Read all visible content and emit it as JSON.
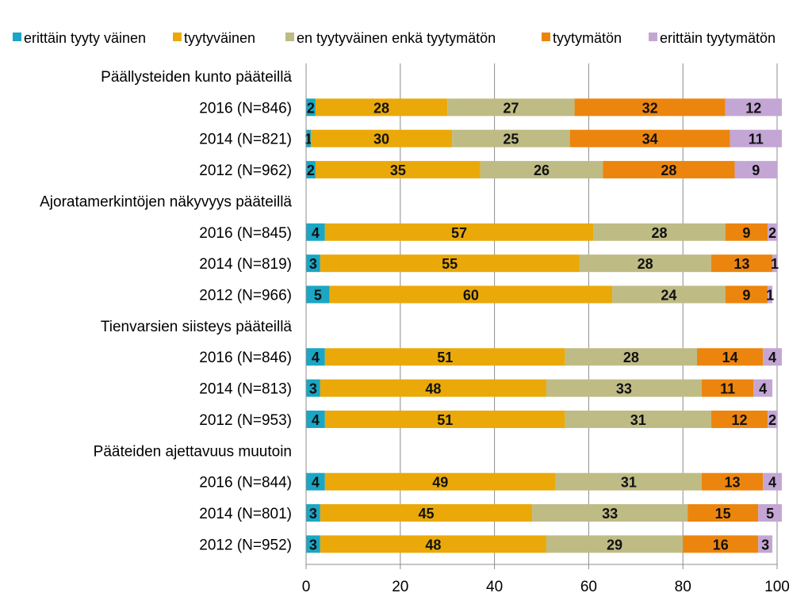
{
  "chart_data": {
    "type": "bar",
    "orientation": "horizontal",
    "stacked": true,
    "xlim": [
      0,
      100
    ],
    "xticks": [
      0,
      20,
      40,
      60,
      80,
      100
    ],
    "grid": "vertical",
    "legend_position": "top",
    "legend": [
      {
        "name": "erittäin tyyty väinen",
        "color": "#1aa6c4"
      },
      {
        "name": "tyytyväinen",
        "color": "#eaa909"
      },
      {
        "name": "en tyytyväinen enkä tyytymätön",
        "color": "#bebb85"
      },
      {
        "name": "tyytymätön",
        "color": "#ec850e"
      },
      {
        "name": "erittäin tyytymätön",
        "color": "#c3a6d4"
      }
    ],
    "rows": [
      {
        "label": "Päällysteiden kunto pääteillä",
        "header": true
      },
      {
        "label": "2016 (N=846)",
        "values": [
          2,
          28,
          27,
          32,
          12
        ]
      },
      {
        "label": "2014 (N=821)",
        "values": [
          1,
          30,
          25,
          34,
          11
        ]
      },
      {
        "label": "2012 (N=962)",
        "values": [
          2,
          35,
          26,
          28,
          9
        ]
      },
      {
        "label": "Ajoratamerkintöjen näkyvyys pääteillä",
        "header": true
      },
      {
        "label": "2016 (N=845)",
        "values": [
          4,
          57,
          28,
          9,
          2
        ]
      },
      {
        "label": "2014 (N=819)",
        "values": [
          3,
          55,
          28,
          13,
          1
        ]
      },
      {
        "label": "2012 (N=966)",
        "values": [
          5,
          60,
          24,
          9,
          1
        ]
      },
      {
        "label": "Tienvarsien siisteys pääteillä",
        "header": true
      },
      {
        "label": "2016 (N=846)",
        "values": [
          4,
          51,
          28,
          14,
          4
        ]
      },
      {
        "label": "2014 (N=813)",
        "values": [
          3,
          48,
          33,
          11,
          4
        ]
      },
      {
        "label": "2012 (N=953)",
        "values": [
          4,
          51,
          31,
          12,
          2
        ]
      },
      {
        "label": "Pääteiden ajettavuus muutoin",
        "header": true
      },
      {
        "label": "2016 (N=844)",
        "values": [
          4,
          49,
          31,
          13,
          4
        ]
      },
      {
        "label": "2014 (N=801)",
        "values": [
          3,
          45,
          33,
          15,
          5
        ]
      },
      {
        "label": "2012 (N=952)",
        "values": [
          3,
          48,
          29,
          16,
          3
        ]
      }
    ]
  }
}
